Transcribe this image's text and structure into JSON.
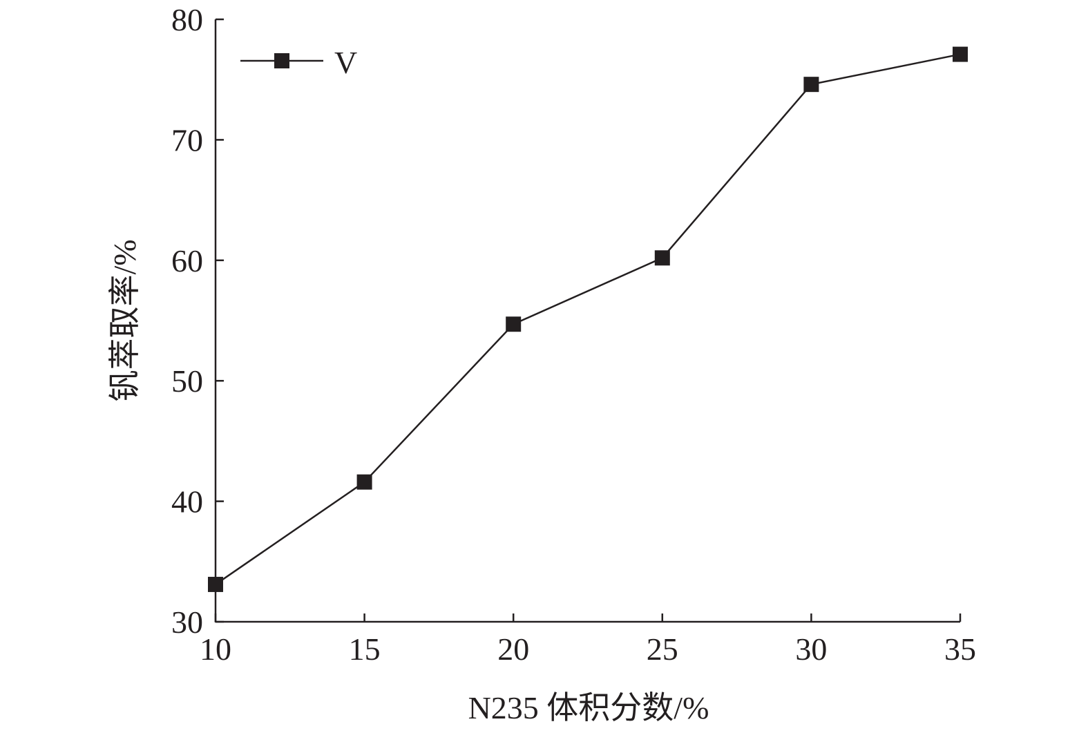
{
  "chart_data": {
    "type": "line",
    "xlabel": "N235 体积分数/%",
    "ylabel": "钒萃取率/%",
    "xlim": [
      10,
      35
    ],
    "ylim": [
      30,
      80
    ],
    "xticks": [
      10,
      15,
      20,
      25,
      30,
      35
    ],
    "yticks": [
      30,
      40,
      50,
      60,
      70,
      80
    ],
    "grid": false,
    "legend_position": "top-left",
    "series": [
      {
        "name": "V",
        "marker": "square",
        "color": "#231f20",
        "x": [
          10,
          15,
          20,
          25,
          30,
          35
        ],
        "y": [
          33.1,
          41.6,
          54.7,
          60.2,
          74.6,
          77.1
        ]
      }
    ]
  }
}
